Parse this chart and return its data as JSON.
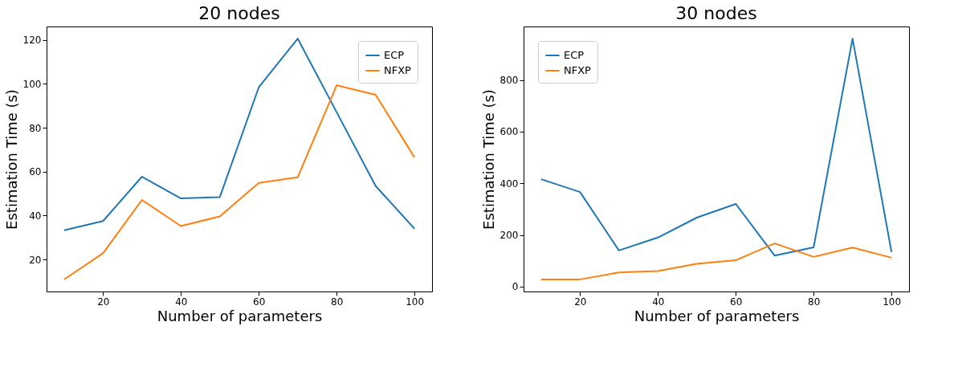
{
  "chart_data": [
    {
      "type": "line",
      "title": "20 nodes",
      "xlabel": "Number of parameters",
      "ylabel": "Estimation Time (s)",
      "x": [
        10,
        20,
        30,
        40,
        50,
        60,
        70,
        80,
        90,
        100
      ],
      "xlim": [
        5.5,
        104.5
      ],
      "xticks": [
        20,
        40,
        60,
        80,
        100
      ],
      "ylim": [
        5.4,
        126.1
      ],
      "yticks": [
        20,
        40,
        60,
        80,
        100,
        120
      ],
      "grid": false,
      "legend": "top right",
      "series": [
        {
          "name": "ECP",
          "color": "#1f77b4",
          "values": [
            33.3,
            37.5,
            57.7,
            47.8,
            48.4,
            98.4,
            120.6,
            87.1,
            53.5,
            34.0
          ]
        },
        {
          "name": "NFXP",
          "color": "#ff7f0e",
          "values": [
            10.9,
            22.8,
            47.1,
            35.2,
            39.6,
            54.9,
            57.4,
            99.3,
            95.0,
            66.5
          ]
        }
      ]
    },
    {
      "type": "line",
      "title": "30 nodes",
      "xlabel": "Number of parameters",
      "ylabel": "Estimation Time (s)",
      "x": [
        10,
        20,
        30,
        40,
        50,
        60,
        70,
        80,
        90,
        100
      ],
      "xlim": [
        5.5,
        104.5
      ],
      "xticks": [
        20,
        40,
        60,
        80,
        100
      ],
      "ylim": [
        -19,
        1007
      ],
      "yticks": [
        0,
        200,
        400,
        600,
        800
      ],
      "grid": false,
      "legend": "top left",
      "series": [
        {
          "name": "ECP",
          "color": "#1f77b4",
          "values": [
            416,
            366,
            140,
            190,
            267,
            320,
            120,
            152,
            960,
            134
          ]
        },
        {
          "name": "NFXP",
          "color": "#ff7f0e",
          "values": [
            28,
            28,
            55,
            60,
            88,
            102,
            167,
            115,
            151,
            112
          ]
        }
      ]
    }
  ]
}
